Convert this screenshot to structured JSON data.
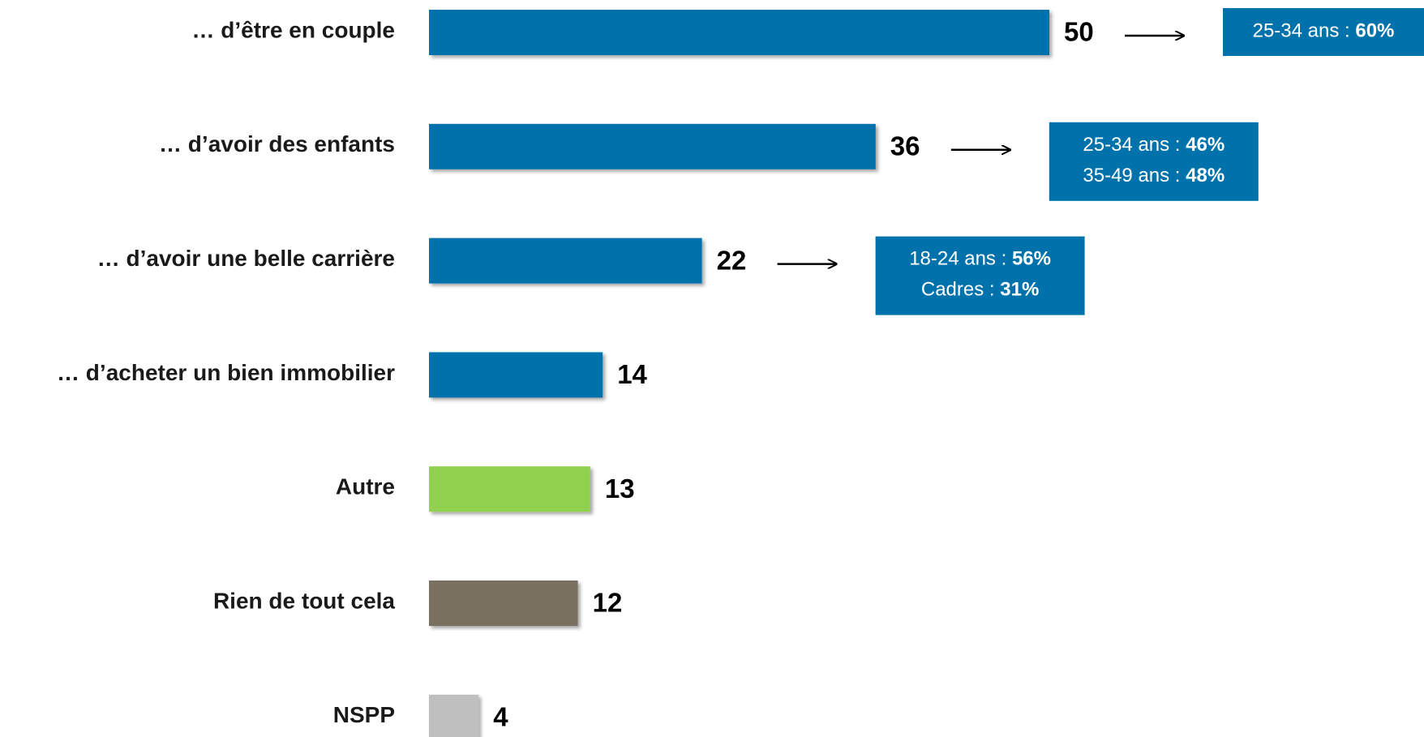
{
  "chart_data": {
    "type": "bar",
    "orientation": "horizontal",
    "categories": [
      "… d’être en couple",
      "… d’avoir des enfants",
      "… d’avoir une belle carrière",
      "… d’acheter un bien immobilier",
      "Autre",
      "Rien de tout cela",
      "NSPP"
    ],
    "values": [
      50,
      36,
      22,
      14,
      13,
      12,
      4
    ],
    "colors": [
      "#0072ab",
      "#0072ab",
      "#0072ab",
      "#0072ab",
      "#92d050",
      "#7a6f5f",
      "#bfbfbf"
    ],
    "annotations": [
      {
        "lines": [
          {
            "label": "25-34 ans :",
            "value": "60%"
          }
        ]
      },
      {
        "lines": [
          {
            "label": "25-34 ans :",
            "value": "46%"
          },
          {
            "label": "35-49 ans :",
            "value": "48%"
          }
        ]
      },
      {
        "lines": [
          {
            "label": "18-24 ans :",
            "value": "56%"
          },
          {
            "label": "Cadres :",
            "value": "31%"
          }
        ]
      }
    ],
    "annotation_color": "#0072ab"
  }
}
